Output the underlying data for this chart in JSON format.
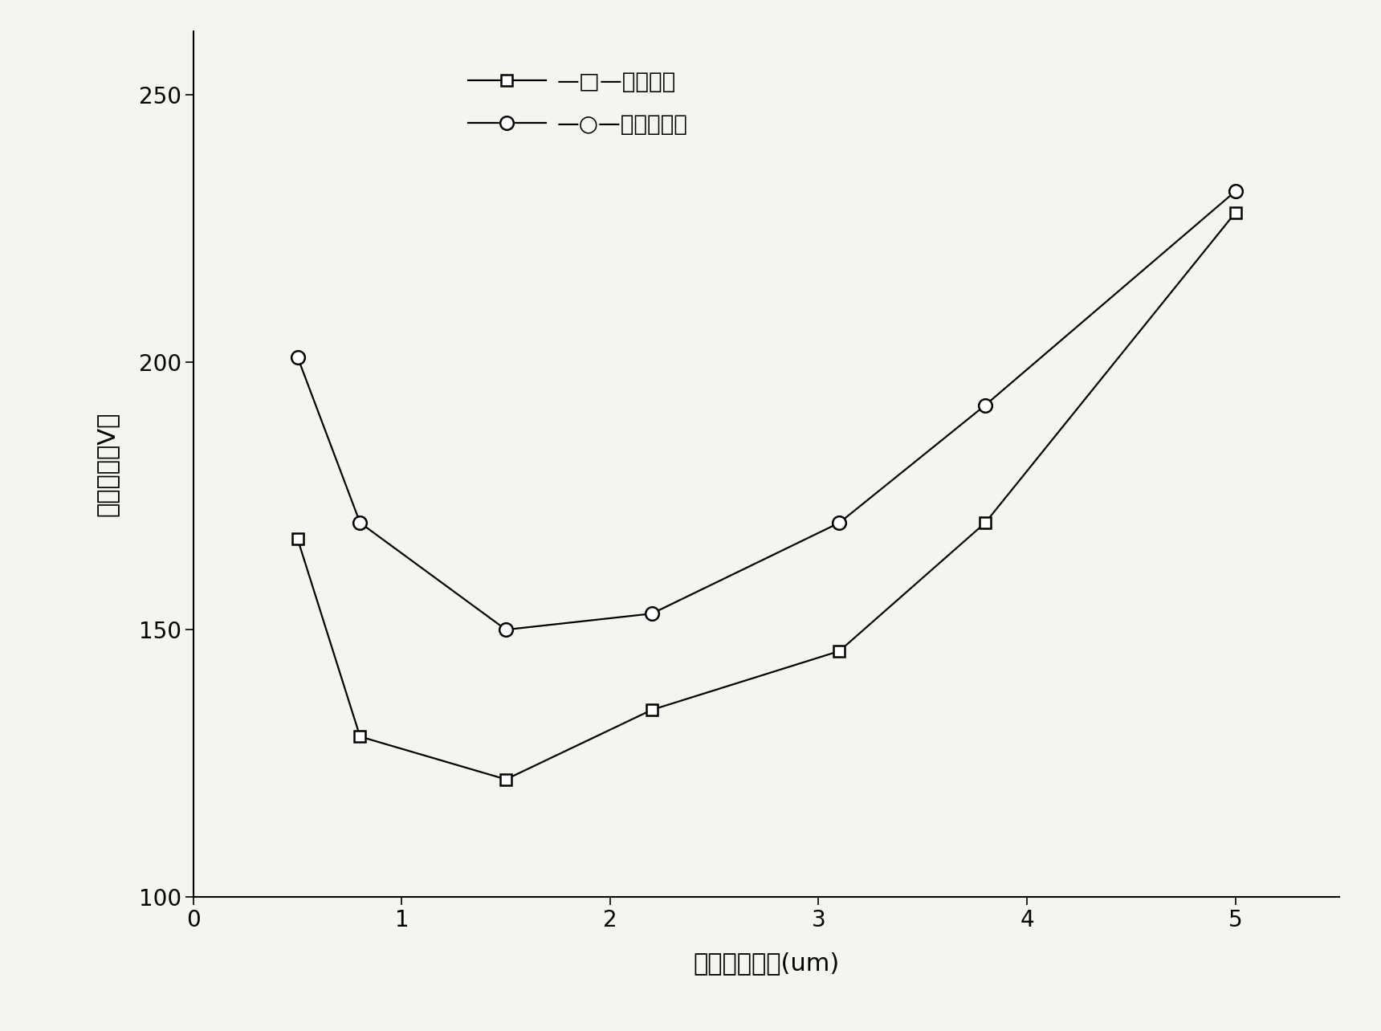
{
  "series1_label": "—□—常规结构",
  "series2_label": "—○—本发明结构",
  "series1_x": [
    0.5,
    0.8,
    1.5,
    2.2,
    3.1,
    3.8,
    5.0
  ],
  "series1_y": [
    167,
    130,
    122,
    135,
    146,
    170,
    228
  ],
  "series2_x": [
    0.5,
    0.8,
    1.5,
    2.2,
    3.1,
    3.8,
    5.0
  ],
  "series2_y": [
    201,
    170,
    150,
    153,
    170,
    192,
    232
  ],
  "xlabel": "外延硅层厚度(um)",
  "ylabel": "击穿电压（V）",
  "xlim": [
    0,
    5.5
  ],
  "ylim": [
    100,
    262
  ],
  "xticks": [
    0,
    1,
    2,
    3,
    4,
    5
  ],
  "yticks": [
    100,
    150,
    200,
    250
  ],
  "line_color": "#000000",
  "bg_color": "#f5f5f0",
  "label_fontsize": 22,
  "tick_fontsize": 20,
  "legend_fontsize": 20,
  "marker_size_sq": 10,
  "marker_size_ci": 12,
  "line_width": 1.6
}
